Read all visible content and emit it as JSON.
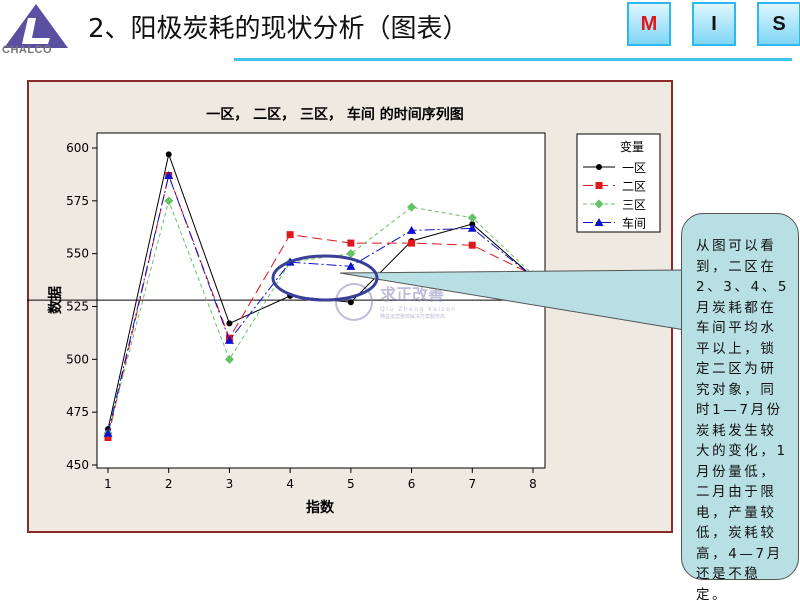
{
  "header": {
    "title": "2、阳极炭耗的现状分析（图表）",
    "logo_text": "CHALCO",
    "nav": [
      "M",
      "I",
      "S"
    ],
    "nav_active_color": "#e0161b"
  },
  "chart_data": {
    "type": "line",
    "title": "一区， 二区， 三区， 车间 的时间序列图",
    "xlabel": "指数",
    "ylabel": "数据",
    "x": [
      1,
      2,
      3,
      4,
      5,
      6,
      7,
      8
    ],
    "xlim": [
      1,
      8
    ],
    "ylim": [
      450,
      600
    ],
    "yticks": [
      450,
      475,
      500,
      525,
      550,
      575,
      600
    ],
    "legend_title": "变量",
    "legend_position": "right",
    "reference_line_y": 528,
    "series": [
      {
        "name": "一区",
        "color": "#000000",
        "marker": "circle",
        "dash": "solid",
        "values": [
          467,
          597,
          517,
          530,
          527,
          556,
          564,
          539
        ]
      },
      {
        "name": "二区",
        "color": "#e0161b",
        "marker": "square",
        "dash": "long-dash",
        "values": [
          463,
          587,
          510,
          559,
          555,
          555,
          554,
          540
        ]
      },
      {
        "name": "三区",
        "color": "#66c266",
        "marker": "diamond",
        "dash": "short-dash",
        "values": [
          465,
          575,
          500,
          546,
          550,
          572,
          567,
          540
        ]
      },
      {
        "name": "车间",
        "color": "#1010d0",
        "marker": "triangle",
        "dash": "dash-dot",
        "values": [
          465,
          587,
          509,
          546,
          544,
          561,
          562,
          539
        ]
      }
    ]
  },
  "watermark": {
    "cn": "求正改善",
    "en": "Qiu Zheng kaizen",
    "sub": "精益运营整体解决方案服务商"
  },
  "callout": {
    "text": "从图可以看到，二区在2、3、4、5月炭耗都在车间平均水平以上，锁定二区为研究对象，同时1—7月份炭耗发生较大的变化，1月份量低，二月由于限电，产量较低，炭耗较高，4—7月还是不稳定。"
  }
}
